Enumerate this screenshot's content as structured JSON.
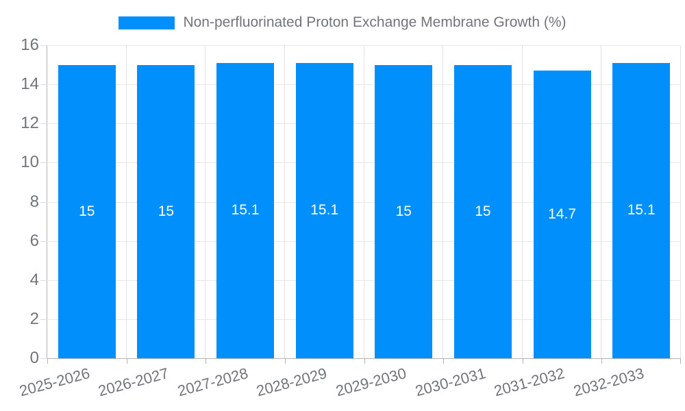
{
  "legend": {
    "label": "Non-perfluorinated Proton Exchange Membrane Growth (%)",
    "swatch_color": "#008FFB"
  },
  "chart_data": {
    "type": "bar",
    "title": "Non-perfluorinated Proton Exchange Membrane Growth (%)",
    "categories": [
      "2025-2026",
      "2026-2027",
      "2027-2028",
      "2028-2029",
      "2029-2030",
      "2030-2031",
      "2031-2032",
      "2032-2033"
    ],
    "values": [
      15,
      15,
      15.1,
      15.1,
      15,
      15,
      14.7,
      15.1
    ],
    "value_labels": [
      "15",
      "15",
      "15.1",
      "15.1",
      "15",
      "15",
      "14.7",
      "15.1"
    ],
    "xlabel": "",
    "ylabel": "",
    "ylim": [
      0,
      16
    ],
    "ytick_step": 2,
    "ytick_labels": [
      "0",
      "2",
      "4",
      "6",
      "8",
      "10",
      "12",
      "14",
      "16"
    ],
    "grid": true,
    "legend_position": "top",
    "bar_color": "#008FFB",
    "value_label_color": "#ffffff",
    "axis_text_color": "#71757a",
    "grid_color": "#e7e7e7",
    "axis_line_color": "#b3b3b3"
  }
}
